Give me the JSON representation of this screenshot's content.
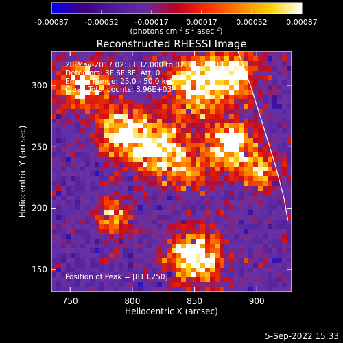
{
  "chart_data": {
    "type": "heatmap",
    "title": "Reconstructed RHESSI Image",
    "xlabel": "Heliocentric X (arcsec)",
    "ylabel": "Heliocentric Y (arcsec)",
    "xlim": [
      735,
      928
    ],
    "ylim": [
      132,
      328
    ],
    "x_ticks": [
      750,
      800,
      850,
      900
    ],
    "y_ticks": [
      150,
      200,
      250,
      300
    ],
    "grid": false,
    "colorbar": {
      "orientation": "horizontal",
      "placement": "top",
      "range": [
        -0.00087,
        0.00087
      ],
      "ticks": [
        "-0.00087",
        "-0.00052",
        "-0.00017",
        "0.00017",
        "0.00052",
        "0.00087"
      ],
      "unit_text": [
        "(photons cm",
        "-2",
        " s",
        "-1",
        " asec",
        "-2",
        ")"
      ],
      "colors": [
        "#0000ff",
        "#400080",
        "#4a1ca0",
        "#6a2aa0",
        "#c00020",
        "#ff3000",
        "#ff8000",
        "#ffd000",
        "#ffffff"
      ]
    },
    "annotations": [
      "28-May-2017 02:33:32.000 to 02:38:32.000",
      "Detectors: 3F 6F 8F, Att: 0",
      "Energy Range: 25.0 - 50.0 keV",
      "Clean     Total counts: 8.96E+03"
    ],
    "peak_label": "Position of Peak = [813,250]",
    "peak": [
      813,
      250
    ],
    "hot_spots": [
      {
        "x": 820,
        "y": 250,
        "amp": 1.0,
        "r": 22
      },
      {
        "x": 790,
        "y": 265,
        "amp": 0.8,
        "r": 18
      },
      {
        "x": 760,
        "y": 300,
        "amp": 0.8,
        "r": 20
      },
      {
        "x": 850,
        "y": 300,
        "amp": 0.9,
        "r": 22
      },
      {
        "x": 880,
        "y": 310,
        "amp": 0.8,
        "r": 20
      },
      {
        "x": 880,
        "y": 250,
        "amp": 0.85,
        "r": 20
      },
      {
        "x": 905,
        "y": 230,
        "amp": 0.6,
        "r": 14
      },
      {
        "x": 850,
        "y": 160,
        "amp": 1.0,
        "r": 20
      },
      {
        "x": 785,
        "y": 195,
        "amp": 0.6,
        "r": 14
      },
      {
        "x": 845,
        "y": 230,
        "amp": 0.5,
        "r": 14
      }
    ],
    "limb": {
      "x": [
        885,
        895,
        905,
        915,
        922,
        925
      ],
      "y": [
        328,
        300,
        268,
        235,
        208,
        190
      ]
    }
  },
  "footer": {
    "date": "5-Sep-2022 15:33"
  }
}
